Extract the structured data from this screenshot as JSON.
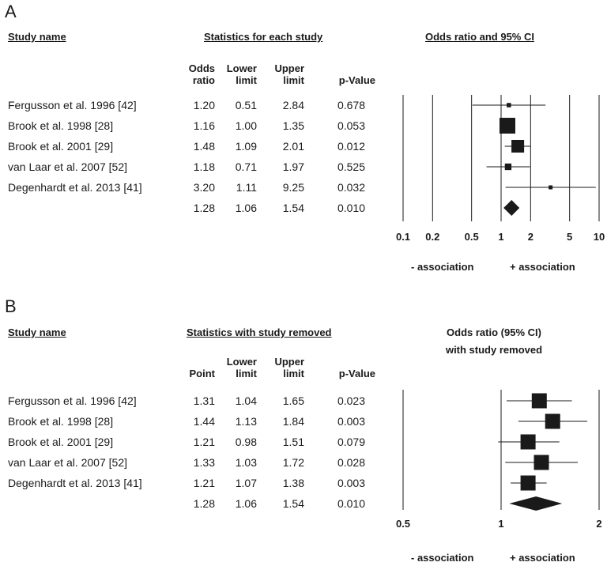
{
  "chart_data": [
    {
      "type": "forest",
      "panel_label": "A",
      "headers": {
        "study": "Study name",
        "stats": "Statistics for each study",
        "plot": "Odds ratio and 95% CI"
      },
      "columns": [
        "Odds\nratio",
        "Lower\nlimit",
        "Upper\nlimit",
        "p-Value"
      ],
      "rows": [
        {
          "name": "Fergusson et al. 1996 [42]",
          "or": 1.2,
          "lower": 0.51,
          "upper": 2.84,
          "p": "0.678",
          "or_text": "1.20",
          "lower_text": "0.51",
          "upper_text": "2.84"
        },
        {
          "name": "Brook et al. 1998 [28]",
          "or": 1.16,
          "lower": 1.0,
          "upper": 1.35,
          "p": "0.053",
          "or_text": "1.16",
          "lower_text": "1.00",
          "upper_text": "1.35"
        },
        {
          "name": "Brook et al. 2001 [29]",
          "or": 1.48,
          "lower": 1.09,
          "upper": 2.01,
          "p": "0.012",
          "or_text": "1.48",
          "lower_text": "1.09",
          "upper_text": "2.01"
        },
        {
          "name": "van Laar et al. 2007 [52]",
          "or": 1.18,
          "lower": 0.71,
          "upper": 1.97,
          "p": "0.525",
          "or_text": "1.18",
          "lower_text": "0.71",
          "upper_text": "1.97"
        },
        {
          "name": "Degenhardt et al. 2013 [41]",
          "or": 3.2,
          "lower": 1.11,
          "upper": 9.25,
          "p": "0.032",
          "or_text": "3.20",
          "lower_text": "1.11",
          "upper_text": "9.25"
        }
      ],
      "summary": {
        "or": 1.28,
        "lower": 1.06,
        "upper": 1.54,
        "p": "0.010",
        "or_text": "1.28",
        "lower_text": "1.06",
        "upper_text": "1.54"
      },
      "xscale": "log",
      "xlim": [
        0.1,
        10
      ],
      "xticks": [
        0.1,
        0.2,
        0.5,
        1,
        2,
        5,
        10
      ],
      "xtick_labels": [
        "0.1",
        "0.2",
        "0.5",
        "1",
        "2",
        "5",
        "10"
      ],
      "axis_labels": {
        "left": "- association",
        "right": "+ association"
      }
    },
    {
      "type": "forest",
      "panel_label": "B",
      "headers": {
        "study": "Study name",
        "stats": "Statistics with study removed",
        "plot_line1": "Odds ratio (95% CI)",
        "plot_line2": "with study removed"
      },
      "columns": [
        "Point",
        "Lower\nlimit",
        "Upper\nlimit",
        "p-Value"
      ],
      "rows": [
        {
          "name": "Fergusson et al. 1996 [42]",
          "or": 1.31,
          "lower": 1.04,
          "upper": 1.65,
          "p": "0.023",
          "or_text": "1.31",
          "lower_text": "1.04",
          "upper_text": "1.65"
        },
        {
          "name": "Brook et al. 1998 [28]",
          "or": 1.44,
          "lower": 1.13,
          "upper": 1.84,
          "p": "0.003",
          "or_text": "1.44",
          "lower_text": "1.13",
          "upper_text": "1.84"
        },
        {
          "name": "Brook et al. 2001 [29]",
          "or": 1.21,
          "lower": 0.98,
          "upper": 1.51,
          "p": "0.079",
          "or_text": "1.21",
          "lower_text": "0.98",
          "upper_text": "1.51"
        },
        {
          "name": "van Laar et al. 2007 [52]",
          "or": 1.33,
          "lower": 1.03,
          "upper": 1.72,
          "p": "0.028",
          "or_text": "1.33",
          "lower_text": "1.03",
          "upper_text": "1.72"
        },
        {
          "name": "Degenhardt et al. 2013 [41]",
          "or": 1.21,
          "lower": 1.07,
          "upper": 1.38,
          "p": "0.003",
          "or_text": "1.21",
          "lower_text": "1.07",
          "upper_text": "1.38"
        }
      ],
      "summary": {
        "or": 1.28,
        "lower": 1.06,
        "upper": 1.54,
        "p": "0.010",
        "or_text": "1.28",
        "lower_text": "1.06",
        "upper_text": "1.54"
      },
      "xscale": "log",
      "xlim": [
        0.5,
        2
      ],
      "xticks": [
        0.5,
        1,
        2
      ],
      "xtick_labels": [
        "0.5",
        "1",
        "2"
      ],
      "axis_labels": {
        "left": "- association",
        "right": "+ association"
      }
    }
  ]
}
